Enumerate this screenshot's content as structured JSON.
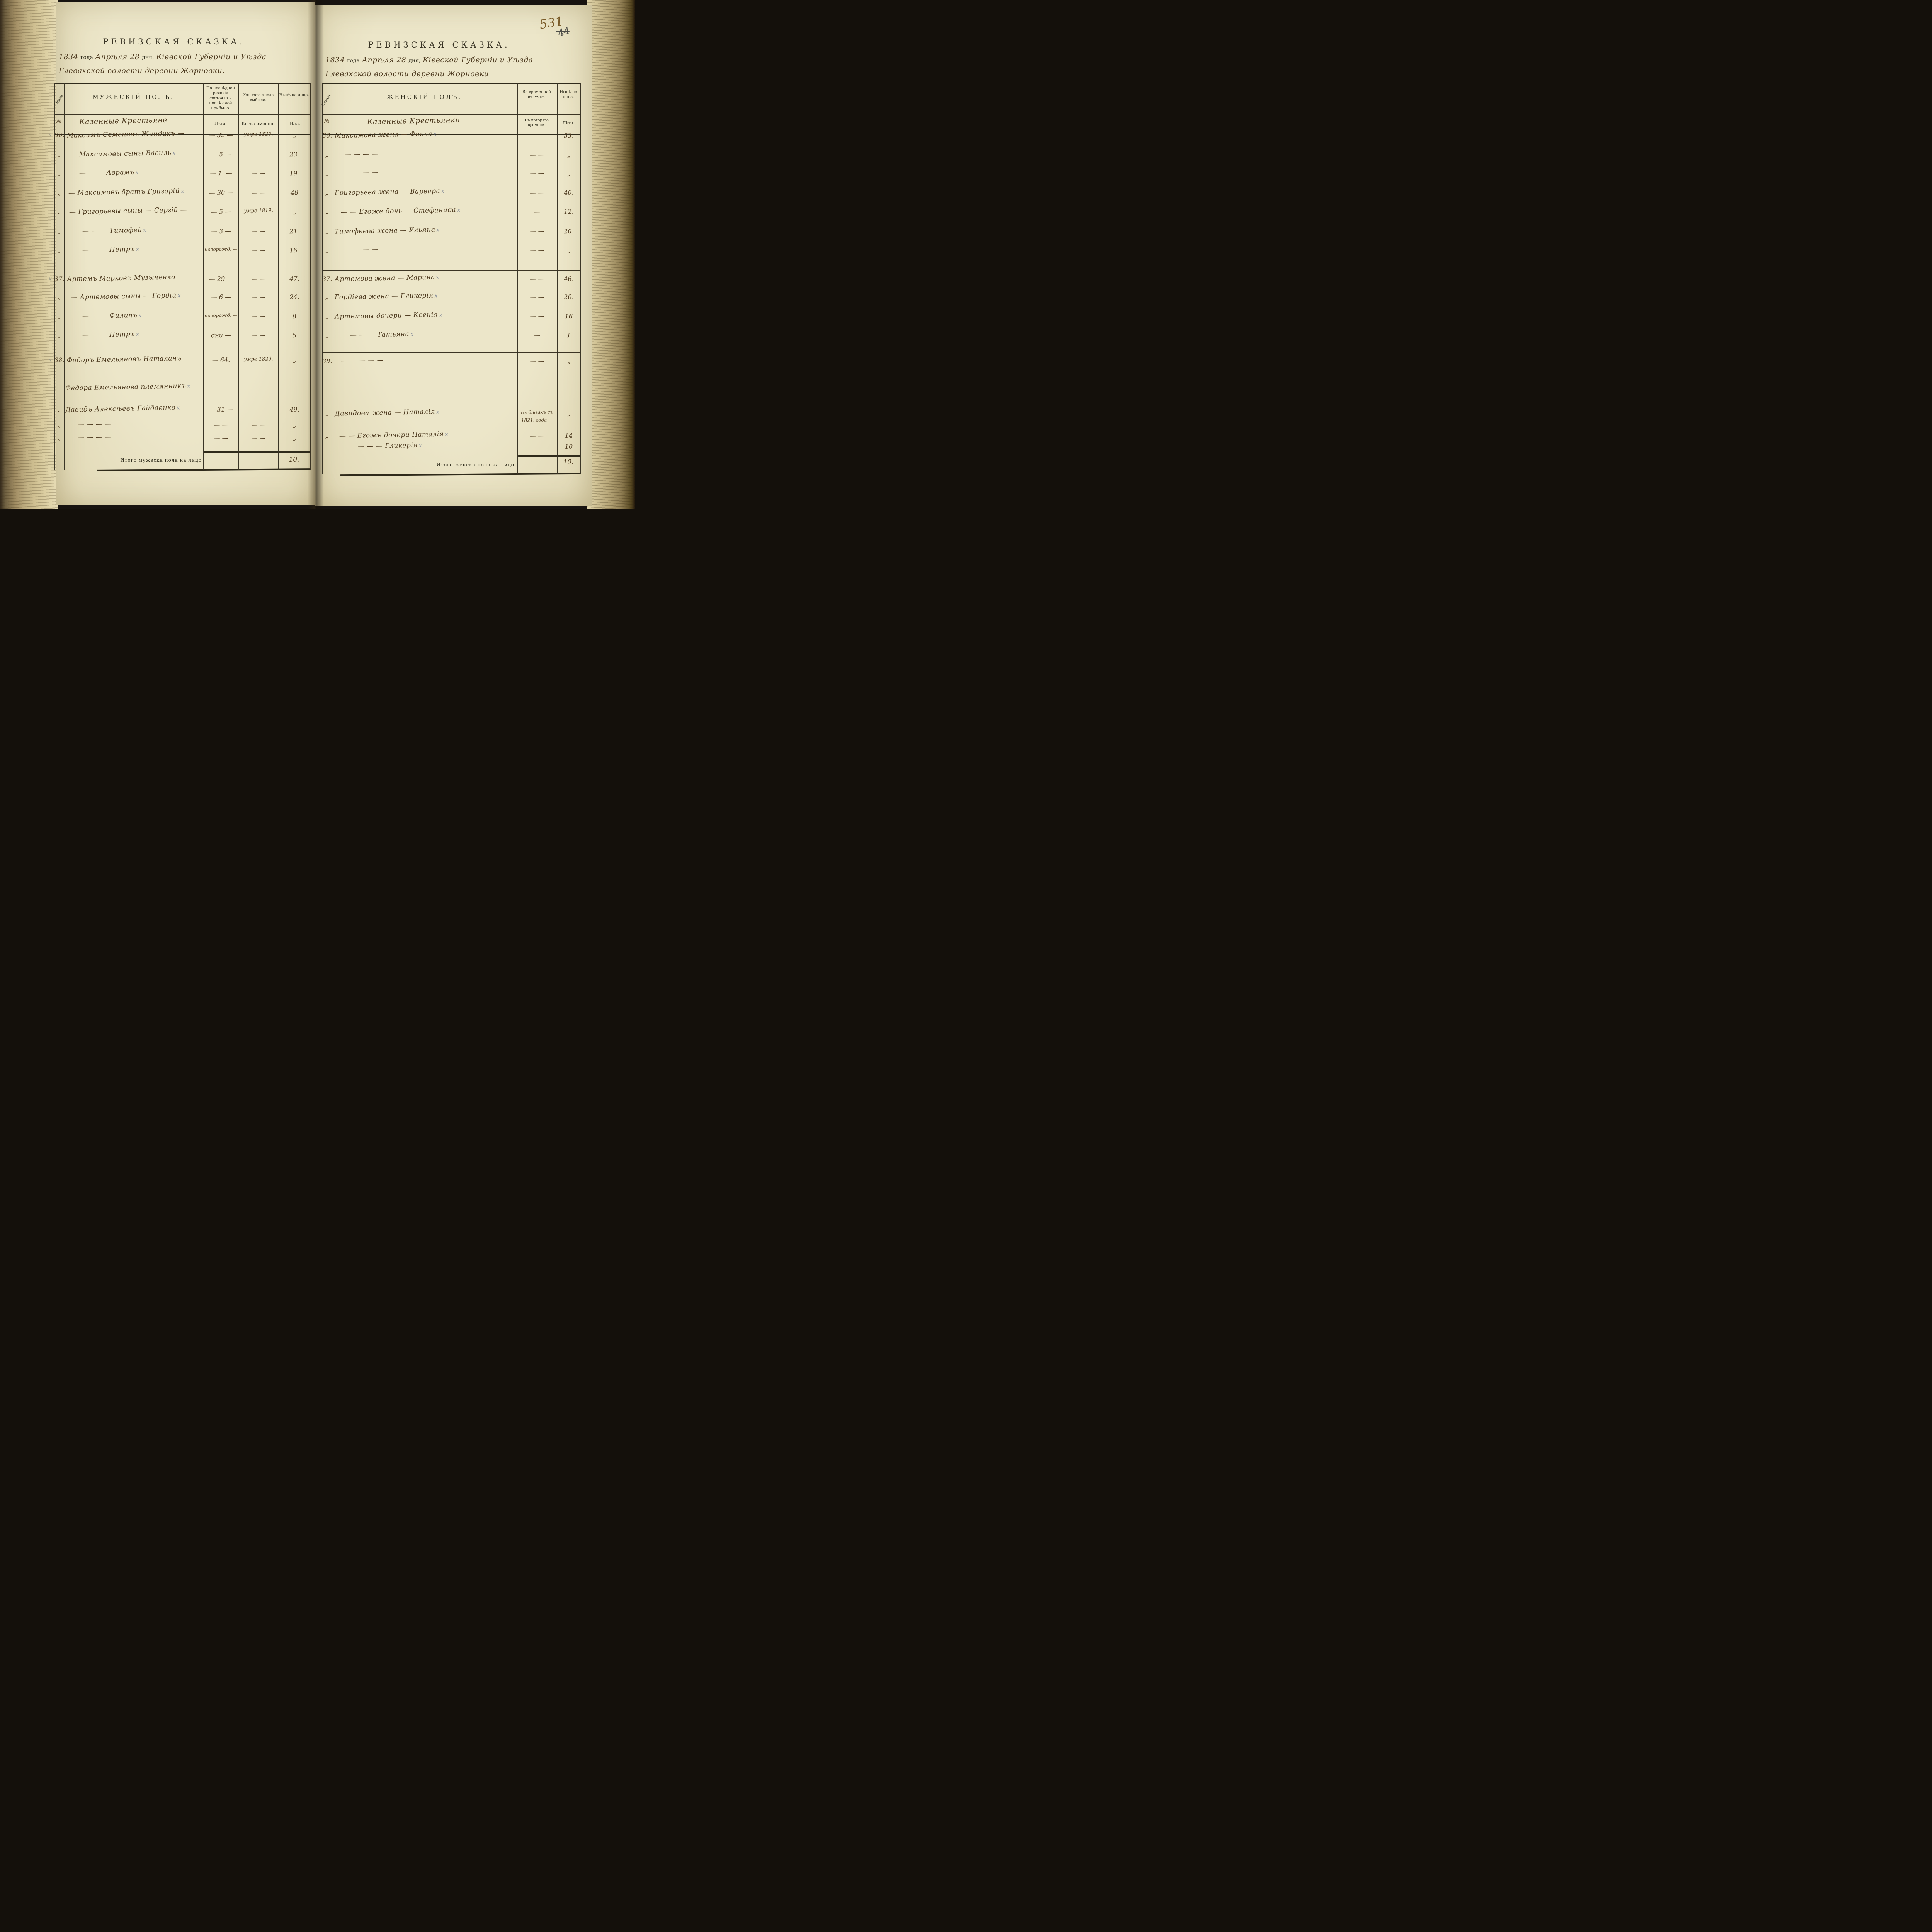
{
  "page_number": {
    "main": "531",
    "crossed": "44"
  },
  "left_page": {
    "title": "РЕВИЗСКАЯ СКАЗКА.",
    "date": {
      "year": "1834",
      "year_label": "года",
      "day_part": "Апрѣля 28",
      "day_label": "дня,",
      "region": "Кіевской Губерніи и Уѣзда",
      "line2": "Глевахской волости деревни Жорновки."
    },
    "table": {
      "col_family": "Семьи.",
      "col_no": "№",
      "col_main": "МУЖЕСКІЙ ПОЛЪ.",
      "col_main_sub": "Казенные Крестьяне",
      "col_rev": "По послѣдней ревизіи состояло и послѣ оной прибыло.",
      "col_rev_sub": "Лѣта.",
      "col_out": "Изъ того числа выбыло.",
      "col_out_sub": "Когда именно.",
      "col_now": "Нынѣ на лицо.",
      "col_now_sub": "Лѣта.",
      "rows": [
        {
          "no": "36.",
          "m": true,
          "name": "Максимъ Семеновъ Жиндикъ —",
          "x": false,
          "prev": "— 32 —",
          "out": "умре 1820.",
          "now": "„"
        },
        {
          "no": "„",
          "m": false,
          "name": "— Максимовы сыны Василь",
          "x": true,
          "prev": "— 5 —",
          "out": "— —",
          "now": "23."
        },
        {
          "no": "„",
          "m": false,
          "name": "— — — Аврамъ",
          "x": true,
          "prev": "— 1. —",
          "out": "— —",
          "now": "19."
        },
        {
          "no": "„",
          "m": false,
          "name": "— Максимовъ братъ Григорій",
          "x": true,
          "prev": "— 30 —",
          "out": "— —",
          "now": "48"
        },
        {
          "no": "„",
          "m": false,
          "name": "— Григорьевы сыны — Сергій —",
          "x": false,
          "prev": "— 5 —",
          "out": "умре 1819.",
          "now": "„"
        },
        {
          "no": "„",
          "m": false,
          "name": "— — — Тимофей",
          "x": true,
          "prev": "— 3 —",
          "out": "— —",
          "now": "21."
        },
        {
          "no": "„",
          "m": false,
          "name": "— — — Петръ",
          "x": true,
          "prev": "новорожд. —",
          "out": "— —",
          "now": "16."
        },
        {
          "no": "37.",
          "m": true,
          "name": "Артемъ Марковъ Музыченко",
          "x": false,
          "prev": "— 29 —",
          "out": "— —",
          "now": "47."
        },
        {
          "no": "„",
          "m": false,
          "name": "— Артемовы сыны — Гордій",
          "x": true,
          "prev": "— 6 —",
          "out": "— —",
          "now": "24."
        },
        {
          "no": "„",
          "m": false,
          "name": "— — — Филипъ",
          "x": true,
          "prev": "новорожд. —",
          "out": "— —",
          "now": "8"
        },
        {
          "no": "„",
          "m": false,
          "name": "— — — Петръ",
          "x": true,
          "prev": "дни —",
          "out": "— —",
          "now": "5"
        },
        {
          "no": "38.",
          "m": true,
          "name": "Федоръ Емельяновъ Наталанъ",
          "x": false,
          "prev": "— 64.",
          "out": "умре 1829.",
          "now": "„"
        },
        {
          "no": "",
          "m": false,
          "name": "Федора Емельянова племянникъ",
          "x": true,
          "prev": "",
          "out": "",
          "now": ""
        },
        {
          "no": "„",
          "m": false,
          "name": "Давидъ Алексѣевъ Гайдаенко",
          "x": true,
          "prev": "— 31 —",
          "out": "— —",
          "now": "49."
        },
        {
          "no": "„",
          "m": false,
          "name": "— — — —",
          "x": false,
          "prev": "— —",
          "out": "— —",
          "now": "„"
        },
        {
          "no": "„",
          "m": false,
          "name": "— — — —",
          "x": false,
          "prev": "— —",
          "out": "— —",
          "now": "„"
        }
      ],
      "total_label": "Итого мужеска пола на лицо",
      "total_value": "10."
    }
  },
  "right_page": {
    "title": "РЕВИЗСКАЯ СКАЗКА.",
    "date": {
      "year": "1834",
      "year_label": "года",
      "day_part": "Апрѣля 28",
      "day_label": "дня,",
      "region": "Кіевской Губерніи и Уѣзда",
      "line2": "Глевахской волости деревни Жорновки"
    },
    "table": {
      "col_family": "Семьи.",
      "col_no": "№",
      "col_main": "ЖЕНСКІЙ ПОЛЪ.",
      "col_main_sub": "Казенные Крестьянки",
      "col_away": "Во временной отлучкѣ.",
      "col_away_sub": "Съ котораго времени.",
      "col_now": "Нынѣ на лицо.",
      "col_now_sub": "Лѣта.",
      "rows": [
        {
          "no": "36.",
          "name": "Максимова жена — Фекла",
          "x": true,
          "away": "— —",
          "now": "53."
        },
        {
          "no": "„",
          "name": "— — — —",
          "x": false,
          "away": "— —",
          "now": "„"
        },
        {
          "no": "„",
          "name": "— — — —",
          "x": false,
          "away": "— —",
          "now": "„"
        },
        {
          "no": "„",
          "name": "Григорьева жена — Варвара",
          "x": true,
          "away": "— —",
          "now": "40."
        },
        {
          "no": "„",
          "name": "— — Егоже дочь — Стефанида",
          "x": true,
          "away": "—",
          "now": "12."
        },
        {
          "no": "„",
          "name": "Тимофеева жена — Ульяна",
          "x": true,
          "away": "— —",
          "now": "20."
        },
        {
          "no": "„",
          "name": "— — — —",
          "x": false,
          "away": "— —",
          "now": "„"
        },
        {
          "no": "37.",
          "name": "Артемова жена — Марина",
          "x": true,
          "away": "— —",
          "now": "46."
        },
        {
          "no": "„",
          "name": "Гордіева жена — Гликерія",
          "x": true,
          "away": "— —",
          "now": "20."
        },
        {
          "no": "„",
          "name": "Артемовы дочери — Ксенія",
          "x": true,
          "away": "— —",
          "now": "16"
        },
        {
          "no": "„",
          "name": "— — — Татьяна",
          "x": true,
          "away": "—",
          "now": "1"
        },
        {
          "no": "38.",
          "name": "— — — — —",
          "x": false,
          "away": "— —",
          "now": "„"
        },
        {
          "no": "„",
          "name": "Давидова жена — Наталія",
          "x": true,
          "away": "въ бѣгахъ съ",
          "away2": "1821. года —",
          "now": "„"
        },
        {
          "no": "„",
          "name": "— — Егоже дочери Наталія",
          "x": true,
          "away": "— —",
          "now": "14"
        },
        {
          "no": "",
          "name": "— — — Гликерія",
          "x": true,
          "away": "— —",
          "now": "10"
        }
      ],
      "total_label": "Итого женска пола на лицо",
      "total_value": "10."
    }
  }
}
